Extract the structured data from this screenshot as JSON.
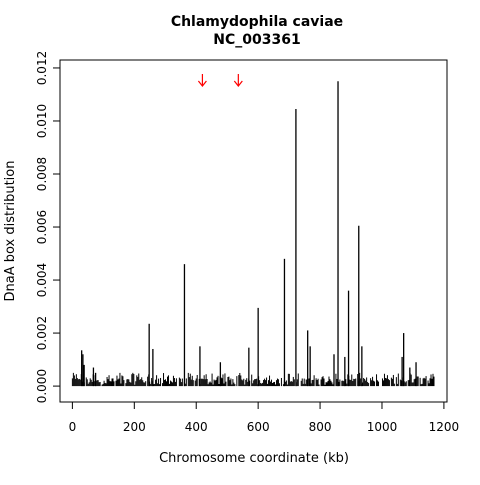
{
  "chart_data": {
    "type": "bar",
    "title": "Chlamydophila caviae",
    "subtitle": "NC_003361",
    "xlabel": "Chromosome coordinate (kb)",
    "ylabel": "DnaA box distribution",
    "xlim": [
      -40,
      1210
    ],
    "ylim": [
      -0.0006,
      0.0123
    ],
    "xticks": [
      0,
      200,
      400,
      600,
      800,
      1000,
      1200
    ],
    "yticks": [
      0.0,
      0.002,
      0.004,
      0.006,
      0.008,
      0.01,
      0.012
    ],
    "ytick_labels": [
      "0.000",
      "0.002",
      "0.004",
      "0.006",
      "0.008",
      "0.010",
      "0.012"
    ],
    "grid": false,
    "legend": "none",
    "markers": [
      {
        "type": "arrow-down",
        "x": 420,
        "color": "#ff0000"
      },
      {
        "type": "arrow-down",
        "x": 536,
        "color": "#ff0000"
      }
    ],
    "series": [
      {
        "x": [
          30,
          34,
          38,
          68,
          75,
          248,
          260,
          362,
          412,
          478,
          570,
          600,
          685,
          722,
          760,
          768,
          845,
          858,
          880,
          892,
          925,
          935,
          1065,
          1070,
          1090,
          1110
        ],
        "values": [
          0.00135,
          0.0012,
          0.0008,
          0.0007,
          0.0005,
          0.00235,
          0.0014,
          0.0046,
          0.0015,
          0.0009,
          0.00145,
          0.00295,
          0.0048,
          0.01045,
          0.0021,
          0.0015,
          0.0012,
          0.0115,
          0.0011,
          0.0036,
          0.00605,
          0.0015,
          0.0011,
          0.002,
          0.0007,
          0.0009
        ]
      }
    ]
  }
}
